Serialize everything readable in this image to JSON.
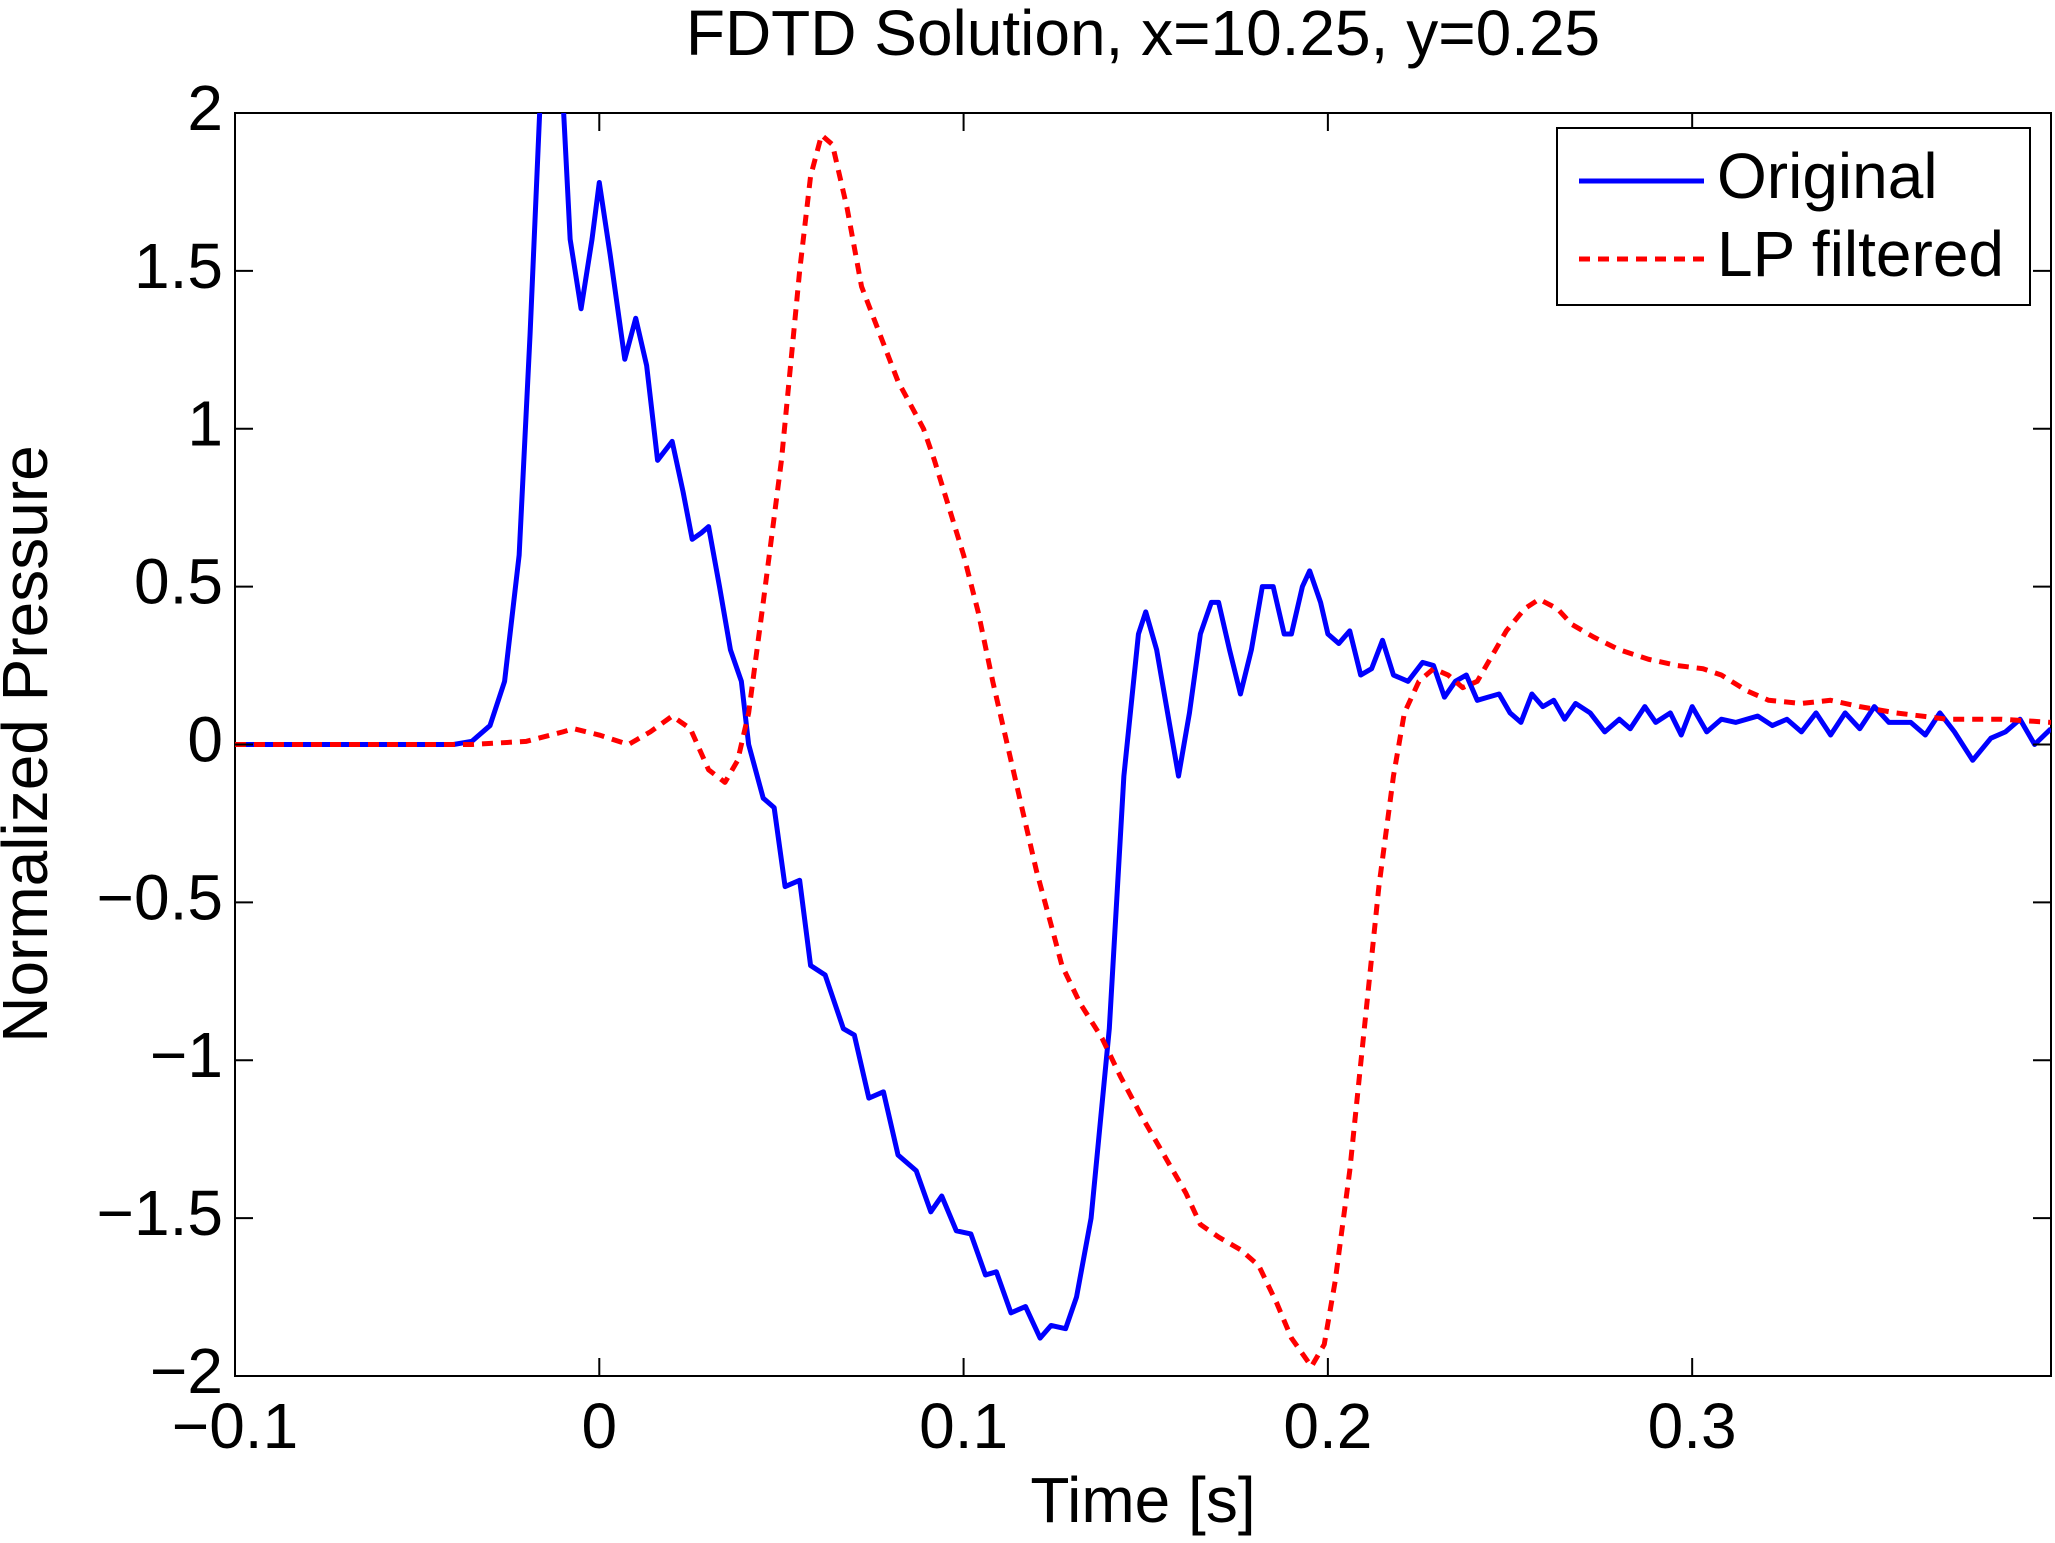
{
  "chart_data": {
    "type": "line",
    "title": "FDTD Solution, x=10.25, y=0.25",
    "xlabel": "Time [s]",
    "ylabel": "Normalized Pressure",
    "xlim": [
      -0.1,
      0.3985
    ],
    "ylim": [
      -2,
      2
    ],
    "xticks": [
      {
        "value": -0.1,
        "label": "−0.1"
      },
      0,
      0.1,
      0.2,
      0.3
    ],
    "yticks": [
      {
        "value": -2,
        "label": "−2"
      },
      {
        "value": -1.5,
        "label": "−1.5"
      },
      {
        "value": -1,
        "label": "−1"
      },
      {
        "value": -0.5,
        "label": "−0.5"
      },
      0,
      0.5,
      1,
      1.5,
      2
    ],
    "legend_position": "upper right",
    "series": [
      {
        "name": "Original",
        "color": "#0000ff",
        "dash": "solid",
        "x": [
          -0.1,
          -0.04,
          -0.035,
          -0.03,
          -0.026,
          -0.022,
          -0.019,
          -0.016,
          -0.013,
          -0.01,
          -0.008,
          -0.005,
          -0.002,
          0.0,
          0.003,
          0.007,
          0.01,
          0.013,
          0.016,
          0.02,
          0.023,
          0.0255,
          0.028,
          0.03,
          0.033,
          0.036,
          0.039,
          0.041,
          0.045,
          0.048,
          0.051,
          0.055,
          0.058,
          0.062,
          0.067,
          0.07,
          0.074,
          0.078,
          0.082,
          0.087,
          0.091,
          0.094,
          0.098,
          0.102,
          0.106,
          0.109,
          0.113,
          0.117,
          0.121,
          0.124,
          0.128,
          0.131,
          0.135,
          0.14,
          0.144,
          0.148,
          0.15,
          0.153,
          0.156,
          0.159,
          0.162,
          0.165,
          0.168,
          0.17,
          0.173,
          0.176,
          0.179,
          0.182,
          0.185,
          0.188,
          0.19,
          0.193,
          0.195,
          0.198,
          0.2,
          0.203,
          0.206,
          0.209,
          0.212,
          0.215,
          0.218,
          0.222,
          0.226,
          0.229,
          0.232,
          0.235,
          0.238,
          0.241,
          0.244,
          0.247,
          0.25,
          0.253,
          0.256,
          0.259,
          0.262,
          0.265,
          0.268,
          0.272,
          0.276,
          0.28,
          0.283,
          0.287,
          0.29,
          0.294,
          0.297,
          0.3,
          0.304,
          0.308,
          0.312,
          0.318,
          0.322,
          0.326,
          0.33,
          0.334,
          0.338,
          0.342,
          0.346,
          0.35,
          0.354,
          0.36,
          0.364,
          0.368,
          0.372,
          0.377,
          0.382,
          0.386,
          0.39,
          0.394,
          0.3985
        ],
        "values": [
          0,
          0,
          0.01,
          0.06,
          0.2,
          0.6,
          1.3,
          2.1,
          2.15,
          2.05,
          1.6,
          1.38,
          1.6,
          1.78,
          1.55,
          1.22,
          1.35,
          1.2,
          0.9,
          0.96,
          0.8,
          0.65,
          0.67,
          0.69,
          0.5,
          0.3,
          0.2,
          0,
          -0.17,
          -0.2,
          -0.45,
          -0.43,
          -0.7,
          -0.73,
          -0.9,
          -0.92,
          -1.12,
          -1.1,
          -1.3,
          -1.35,
          -1.48,
          -1.43,
          -1.54,
          -1.55,
          -1.68,
          -1.67,
          -1.8,
          -1.78,
          -1.88,
          -1.84,
          -1.85,
          -1.75,
          -1.5,
          -0.9,
          -0.1,
          0.35,
          0.42,
          0.3,
          0.1,
          -0.1,
          0.1,
          0.35,
          0.45,
          0.45,
          0.3,
          0.16,
          0.3,
          0.5,
          0.5,
          0.35,
          0.35,
          0.5,
          0.55,
          0.45,
          0.35,
          0.32,
          0.36,
          0.22,
          0.24,
          0.33,
          0.22,
          0.2,
          0.26,
          0.25,
          0.15,
          0.2,
          0.22,
          0.14,
          0.15,
          0.16,
          0.1,
          0.07,
          0.16,
          0.12,
          0.14,
          0.08,
          0.13,
          0.1,
          0.04,
          0.08,
          0.05,
          0.12,
          0.07,
          0.1,
          0.03,
          0.12,
          0.04,
          0.08,
          0.07,
          0.09,
          0.06,
          0.08,
          0.04,
          0.1,
          0.03,
          0.1,
          0.05,
          0.12,
          0.07,
          0.07,
          0.03,
          0.1,
          0.04,
          -0.05,
          0.02,
          0.04,
          0.08,
          0.0,
          0.05
        ]
      },
      {
        "name": "LP filtered",
        "color": "#ff0000",
        "dash": "dashed",
        "x": [
          -0.1,
          -0.035,
          -0.02,
          -0.01,
          -0.007,
          0.0,
          0.008,
          0.014,
          0.02,
          0.025,
          0.03,
          0.0345,
          0.038,
          0.041,
          0.045,
          0.05,
          0.055,
          0.058,
          0.061,
          0.064,
          0.068,
          0.072,
          0.077,
          0.082,
          0.089,
          0.092,
          0.096,
          0.1,
          0.104,
          0.108,
          0.113,
          0.117,
          0.12,
          0.124,
          0.127,
          0.132,
          0.138,
          0.143,
          0.149,
          0.155,
          0.161,
          0.165,
          0.17,
          0.176,
          0.181,
          0.186,
          0.19,
          0.1955,
          0.199,
          0.202,
          0.206,
          0.21,
          0.214,
          0.218,
          0.221,
          0.225,
          0.229,
          0.233,
          0.237,
          0.241,
          0.245,
          0.249,
          0.254,
          0.258,
          0.263,
          0.267,
          0.273,
          0.28,
          0.288,
          0.296,
          0.303,
          0.308,
          0.315,
          0.321,
          0.33,
          0.338,
          0.346,
          0.356,
          0.37,
          0.385,
          0.3985
        ],
        "values": [
          0,
          0,
          0.01,
          0.04,
          0.05,
          0.03,
          0.0,
          0.04,
          0.09,
          0.05,
          -0.08,
          -0.12,
          -0.05,
          0.1,
          0.45,
          0.9,
          1.5,
          1.8,
          1.93,
          1.9,
          1.7,
          1.45,
          1.3,
          1.15,
          1.0,
          0.9,
          0.75,
          0.6,
          0.42,
          0.2,
          -0.05,
          -0.25,
          -0.4,
          -0.57,
          -0.7,
          -0.82,
          -0.93,
          -1.05,
          -1.18,
          -1.3,
          -1.42,
          -1.52,
          -1.56,
          -1.6,
          -1.65,
          -1.77,
          -1.88,
          -1.97,
          -1.9,
          -1.7,
          -1.35,
          -0.9,
          -0.45,
          -0.1,
          0.1,
          0.2,
          0.24,
          0.22,
          0.18,
          0.2,
          0.28,
          0.36,
          0.43,
          0.46,
          0.43,
          0.38,
          0.34,
          0.3,
          0.27,
          0.25,
          0.24,
          0.22,
          0.17,
          0.14,
          0.13,
          0.14,
          0.12,
          0.1,
          0.08,
          0.08,
          0.07
        ]
      }
    ]
  }
}
